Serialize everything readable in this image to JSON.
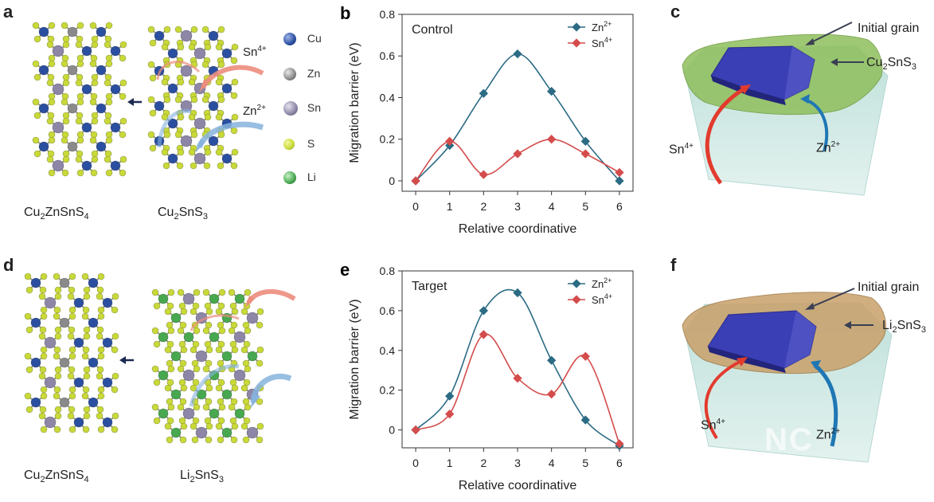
{
  "panels": {
    "a": {
      "letter": "a",
      "left_label": {
        "pre": "Cu",
        "s1": "2",
        "mid": "ZnSnS",
        "s2": "4"
      },
      "right_label": {
        "pre": "Cu",
        "s1": "2",
        "mid": "SnS",
        "s2": "3"
      },
      "ion_sn": {
        "base": "Sn",
        "sup": "4+"
      },
      "ion_zn": {
        "base": "Zn",
        "sup": "2+"
      }
    },
    "d": {
      "letter": "d",
      "left_label": {
        "pre": "Cu",
        "s1": "2",
        "mid": "ZnSnS",
        "s2": "4"
      },
      "right_label": {
        "pre": "Li",
        "s1": "2",
        "mid": "SnS",
        "s2": "3"
      }
    },
    "c": {
      "letter": "c",
      "initial_grain": "Initial grain",
      "layer": {
        "pre": "Cu",
        "s1": "2",
        "mid": "SnS",
        "s2": "3"
      },
      "ion_sn": {
        "base": "Sn",
        "sup": "4+"
      },
      "ion_zn": {
        "base": "Zn",
        "sup": "2+"
      }
    },
    "f": {
      "letter": "f",
      "initial_grain": "Initial grain",
      "layer": {
        "pre": "Li",
        "s1": "2",
        "mid": "SnS",
        "s2": "3"
      },
      "ion_sn": {
        "base": "Sn",
        "sup": "4+"
      },
      "ion_zn": {
        "base": "Zn",
        "sup": "2+"
      },
      "watermark": "NC"
    }
  },
  "atom_legend": [
    {
      "label": "Cu",
      "color": "#2b4fa0"
    },
    {
      "label": "Zn",
      "color": "#8a8a8a"
    },
    {
      "label": "Sn",
      "color": "#8d86a6"
    },
    {
      "label": "S",
      "color": "#c9d938"
    },
    {
      "label": "Li",
      "color": "#47a84f"
    }
  ],
  "chart_data": [
    {
      "letter": "b",
      "type": "line",
      "title": "Control",
      "xlabel": "Relative coordinative",
      "ylabel": "Migration barrier (eV)",
      "xlim": [
        -0.4,
        6.4
      ],
      "ylim": [
        -0.05,
        0.8
      ],
      "xticks": [
        0,
        1,
        2,
        3,
        4,
        5,
        6
      ],
      "yticks": [
        0,
        0.2,
        0.4,
        0.6,
        0.8
      ],
      "ytick_labels": [
        "0",
        "0.2",
        "0.4",
        "0.6",
        "0.8"
      ],
      "legend_position": "top-right",
      "series": [
        {
          "name": "Zn",
          "sup": "2+",
          "color": "#2b6b84",
          "marker": "diamond",
          "x": [
            0,
            1,
            2,
            3,
            4,
            5,
            6
          ],
          "y": [
            0,
            0.17,
            0.42,
            0.61,
            0.43,
            0.19,
            0
          ]
        },
        {
          "name": "Sn",
          "sup": "4+",
          "color": "#d44c4c",
          "marker": "diamond",
          "x": [
            0,
            1,
            2,
            3,
            4,
            5,
            6
          ],
          "y": [
            0,
            0.19,
            0.03,
            0.13,
            0.2,
            0.13,
            0.04
          ]
        }
      ]
    },
    {
      "letter": "e",
      "type": "line",
      "title": "Target",
      "xlabel": "Relative coordinative",
      "ylabel": "Migration barrier (eV)",
      "xlim": [
        -0.4,
        6.4
      ],
      "ylim": [
        -0.09,
        0.8
      ],
      "xticks": [
        0,
        1,
        2,
        3,
        4,
        5,
        6
      ],
      "yticks": [
        0,
        0.2,
        0.4,
        0.6,
        0.8
      ],
      "ytick_labels": [
        "0",
        "0.2",
        "0.4",
        "0.6",
        "0.8"
      ],
      "legend_position": "top-right",
      "series": [
        {
          "name": "Zn",
          "sup": "2+",
          "color": "#2b6b84",
          "marker": "diamond",
          "x": [
            0,
            1,
            2,
            3,
            4,
            5,
            6
          ],
          "y": [
            0,
            0.17,
            0.6,
            0.69,
            0.35,
            0.05,
            -0.08
          ]
        },
        {
          "name": "Sn",
          "sup": "4+",
          "color": "#d44c4c",
          "marker": "diamond",
          "x": [
            0,
            1,
            2,
            3,
            4,
            5,
            6
          ],
          "y": [
            0,
            0.08,
            0.48,
            0.26,
            0.18,
            0.37,
            -0.07
          ]
        }
      ]
    }
  ]
}
